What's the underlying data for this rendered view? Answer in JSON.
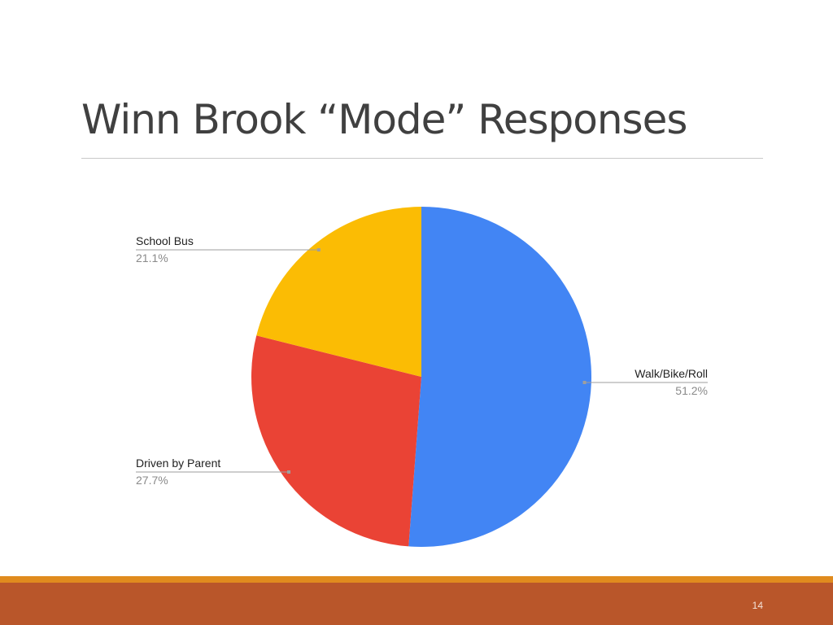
{
  "slide": {
    "title": "Winn Brook “Mode” Responses",
    "page_number": "14"
  },
  "chart_data": {
    "type": "pie",
    "categories": [
      "Walk/Bike/Roll",
      "Driven by Parent",
      "School Bus"
    ],
    "values": [
      51.2,
      27.7,
      21.1
    ],
    "labels": [
      "51.2%",
      "27.7%",
      "21.1%"
    ],
    "colors": [
      "#4285f4",
      "#ea4335",
      "#fbbc04"
    ],
    "start_angle": "12 o'clock",
    "direction": "clockwise",
    "label_style": "callout lines with name and percentage"
  },
  "theme": {
    "footer_stripe_color": "#e08b1e",
    "footer_bar_color": "#b9562a"
  }
}
